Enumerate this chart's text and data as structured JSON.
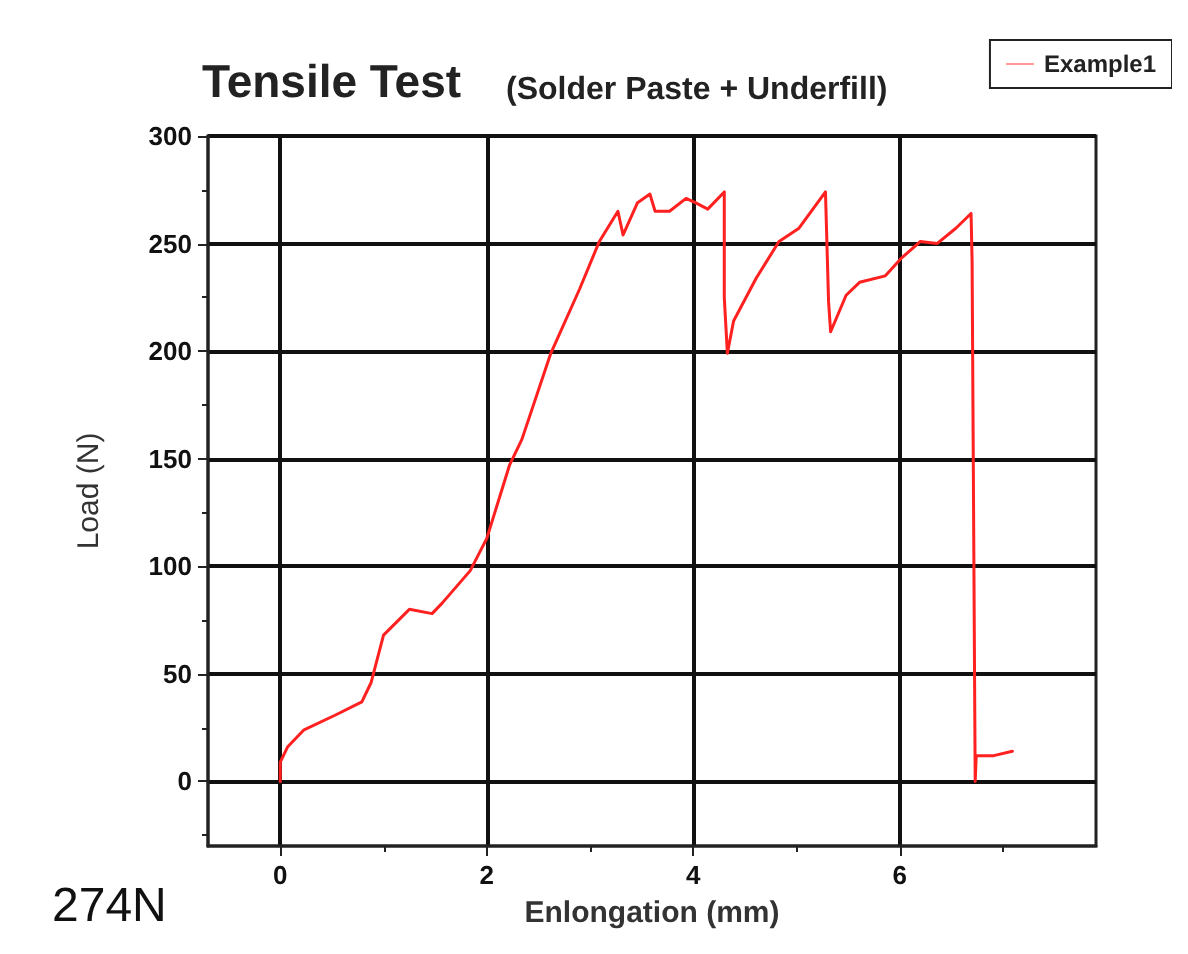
{
  "chart_data": {
    "type": "line",
    "title": "Tensile Test",
    "subtitle": "(Solder Paste + Underfill)",
    "xlabel": "Enlongation (mm)",
    "ylabel": "Load (N)",
    "annotations": [
      "274N"
    ],
    "xlim": [
      -0.7,
      7.9
    ],
    "ylim": [
      -30,
      300
    ],
    "xticks": [
      0,
      2,
      4,
      6
    ],
    "yticks": [
      0,
      50,
      100,
      150,
      200,
      250,
      300
    ],
    "grid": true,
    "legend": "top right",
    "marker": "none",
    "line_style": "solid",
    "series": [
      {
        "name": "Example1",
        "color": "#ff2020",
        "x": [
          0,
          0,
          0.07,
          0.23,
          0.54,
          0.79,
          0.88,
          1.0,
          1.25,
          1.47,
          1.57,
          1.84,
          2.0,
          2.22,
          2.34,
          2.62,
          2.9,
          3.09,
          3.27,
          3.32,
          3.46,
          3.58,
          3.63,
          3.77,
          3.93,
          4.02,
          4.14,
          4.3,
          4.3,
          4.33,
          4.39,
          4.61,
          4.83,
          5.02,
          5.28,
          5.31,
          5.33,
          5.48,
          5.61,
          5.86,
          6.01,
          6.2,
          6.36,
          6.54,
          6.69,
          6.7,
          6.73,
          6.74,
          6.91,
          7.09
        ],
        "values": [
          0,
          9,
          16,
          24,
          31,
          37,
          46,
          68,
          80,
          78,
          83,
          98,
          113,
          147,
          159,
          199,
          229,
          251,
          265,
          254,
          269,
          273,
          265,
          265,
          271,
          269,
          266,
          274,
          225,
          199,
          214,
          234,
          251,
          257,
          274,
          223,
          209,
          226,
          232,
          235,
          243,
          251,
          250,
          257,
          264,
          242,
          0,
          12,
          12,
          14
        ]
      }
    ]
  }
}
